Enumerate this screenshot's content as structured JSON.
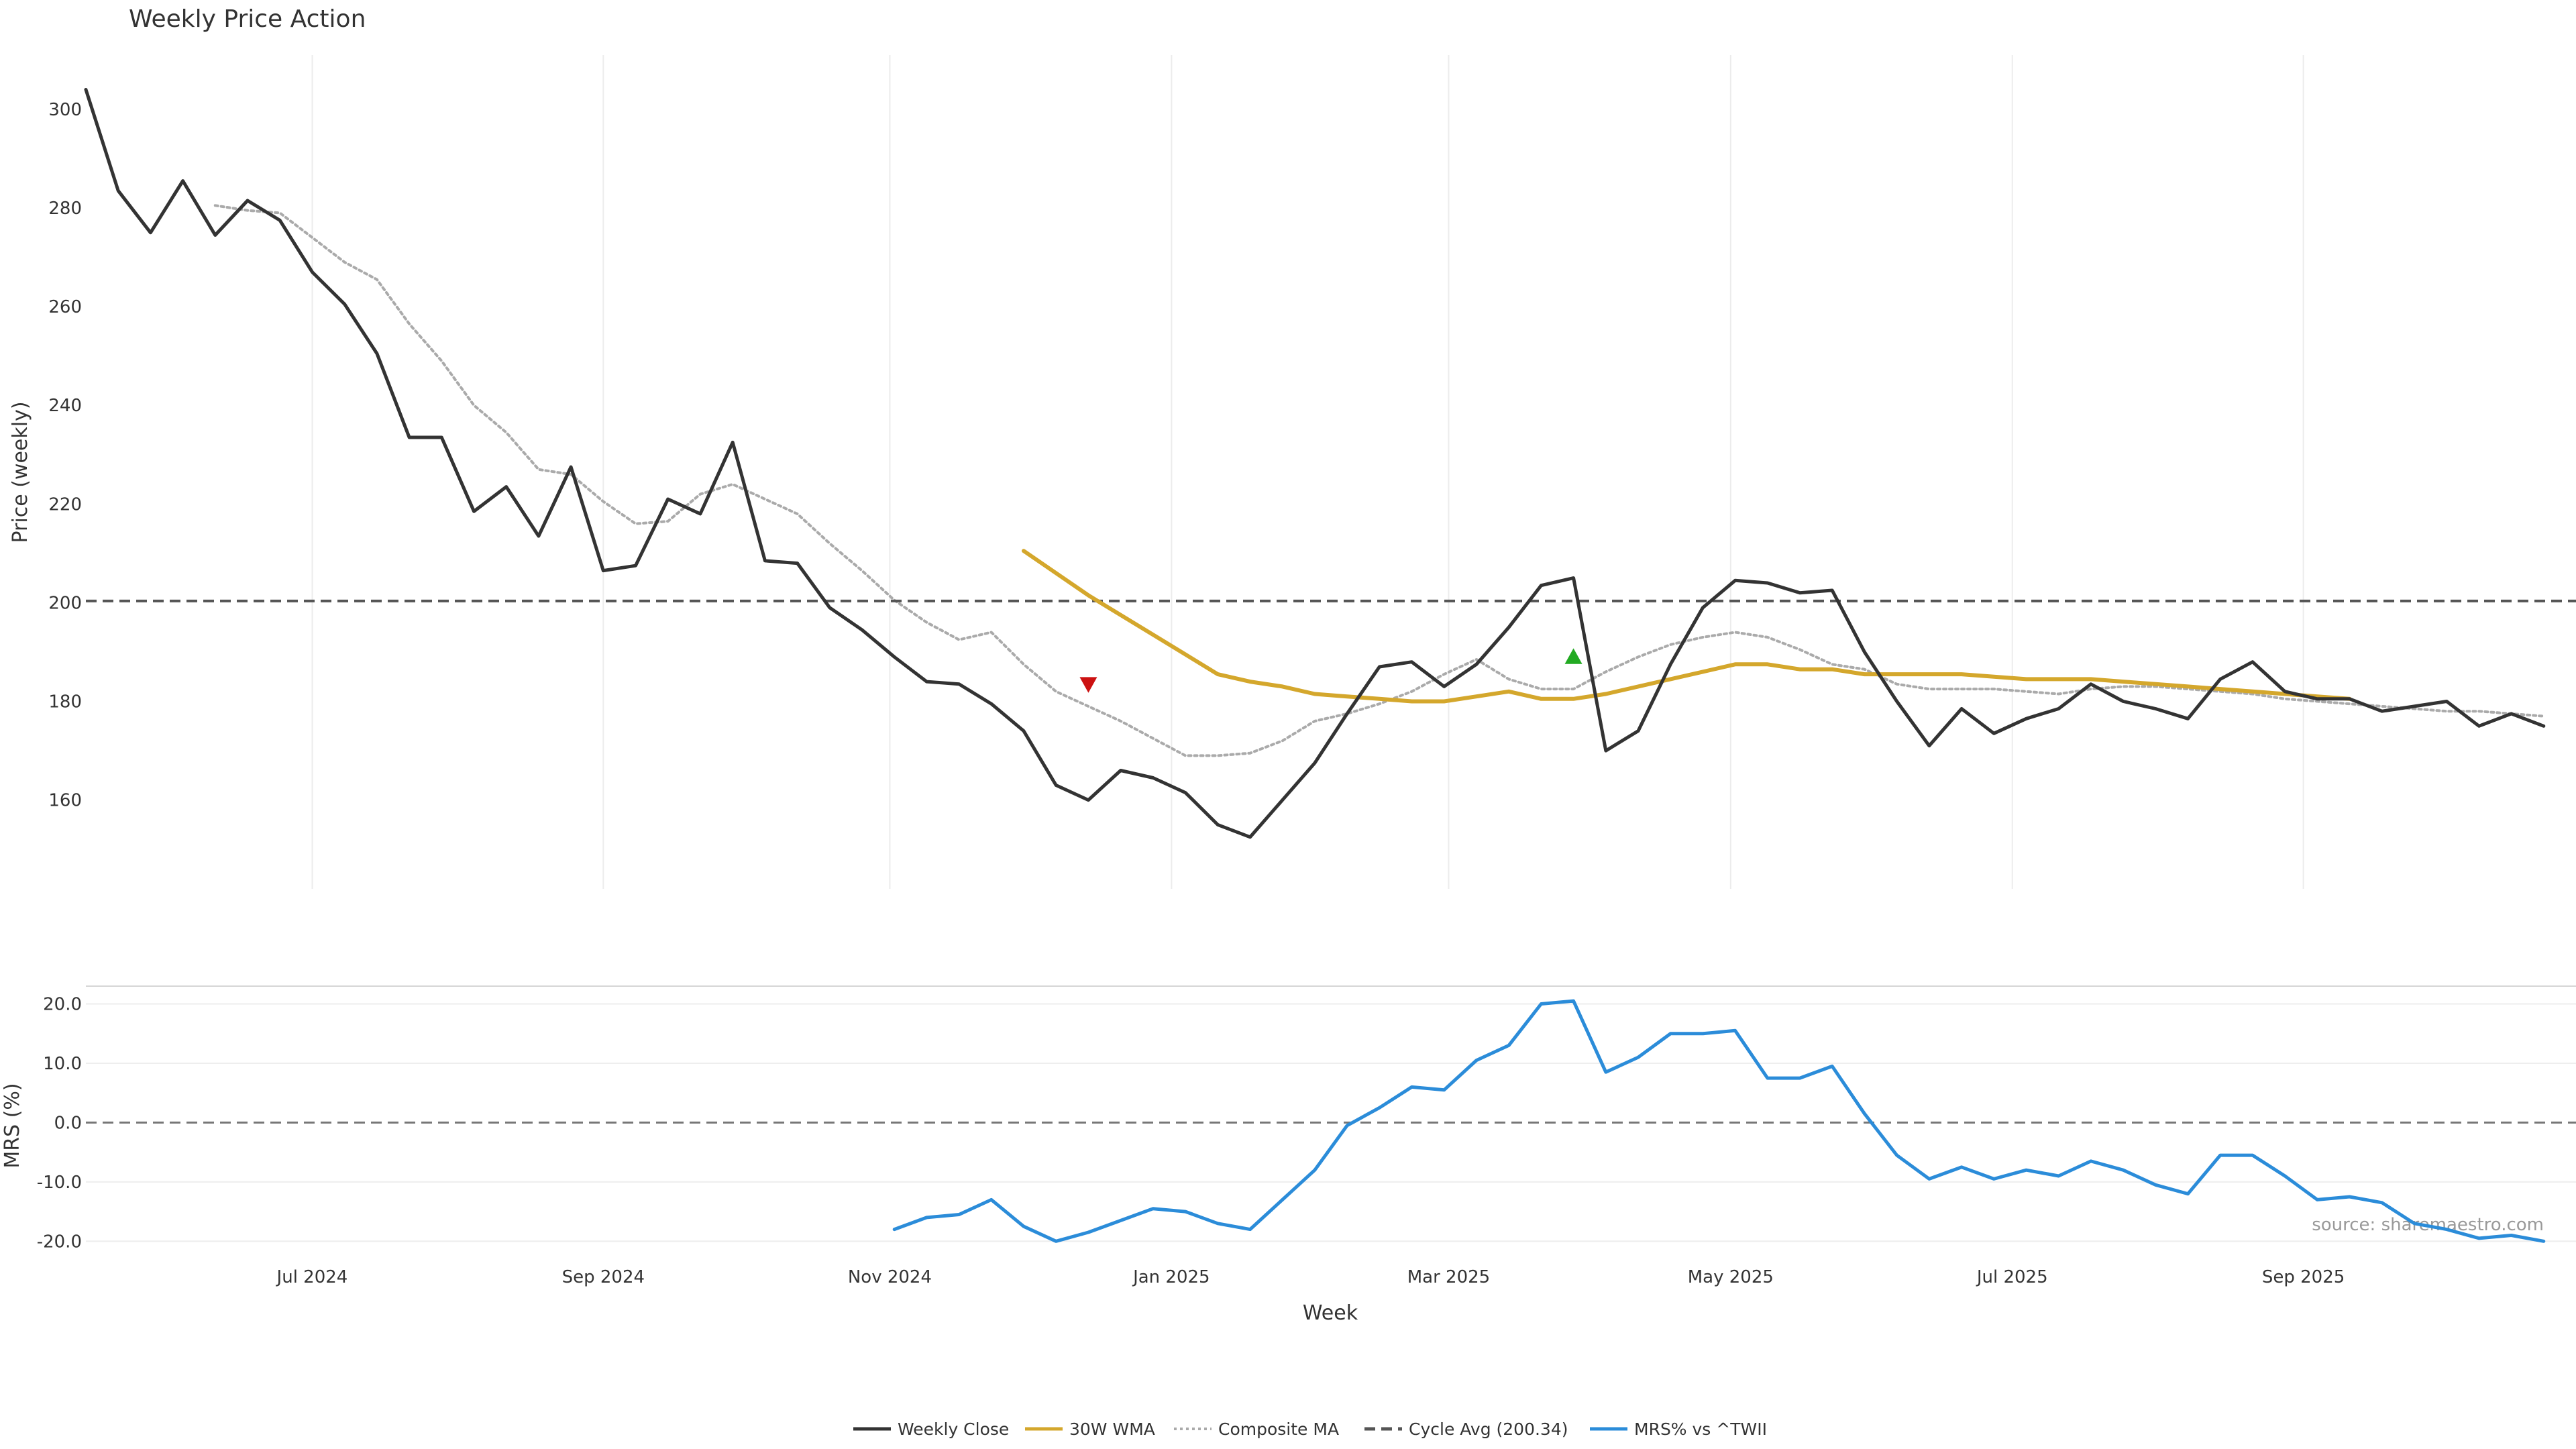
{
  "chart_data": [
    {
      "type": "line",
      "title": "Weekly Price Action",
      "ylabel": "Price (weekly)",
      "ylim": [
        142,
        311
      ],
      "yticks": [
        160,
        180,
        200,
        220,
        240,
        260,
        280,
        300
      ],
      "x_axis": {
        "domain": [
          0,
          77
        ],
        "week_labels": [
          {
            "week": 7,
            "label": "Jul 2024"
          },
          {
            "week": 16,
            "label": "Sep 2024"
          },
          {
            "week": 24.86,
            "label": "Nov 2024"
          },
          {
            "week": 33.57,
            "label": "Jan 2025"
          },
          {
            "week": 42.14,
            "label": "Mar 2025"
          },
          {
            "week": 50.86,
            "label": "May 2025"
          },
          {
            "week": 59.57,
            "label": "Jul 2025"
          },
          {
            "week": 68.57,
            "label": "Sep 2025"
          }
        ]
      },
      "series": [
        {
          "name": "Weekly Close",
          "color": "#333333",
          "style": "solid",
          "start_week": 0,
          "values": [
            304,
            283.5,
            275,
            285.5,
            274.5,
            281.5,
            277.5,
            267,
            260.5,
            250.5,
            233.5,
            233.5,
            218.5,
            223.5,
            213.5,
            227.5,
            206.5,
            207.5,
            221,
            218,
            232.5,
            208.5,
            208,
            199,
            194.5,
            189,
            184,
            183.5,
            179.5,
            174,
            163,
            160,
            166,
            164.5,
            161.5,
            155,
            152.5,
            160,
            167.5,
            177.5,
            187,
            188,
            183,
            187.5,
            195,
            203.5,
            205,
            170,
            174,
            187.5,
            199,
            204.5,
            204,
            202,
            202.5,
            190,
            180,
            171,
            178.5,
            173.5,
            176.5,
            178.5,
            183.5,
            180,
            178.5,
            176.5,
            184.5,
            188,
            182,
            180.5,
            180.5,
            178,
            179,
            180,
            175,
            177.5,
            175
          ]
        },
        {
          "name": "30W WMA",
          "color": "#d4a72c",
          "style": "solid",
          "start_week": 29,
          "values": [
            210.5,
            206,
            201.5,
            197.5,
            193.5,
            189.5,
            185.5,
            184,
            183,
            181.5,
            181,
            180.5,
            180,
            180,
            181,
            182,
            180.5,
            180.5,
            181.5,
            183,
            184.5,
            186,
            187.5,
            187.5,
            186.5,
            186.5,
            185.5,
            185.5,
            185.5,
            185.5,
            185,
            184.5,
            184.5,
            184.5,
            184,
            183.5,
            183,
            182.5,
            182,
            181.5,
            181,
            180.5
          ]
        },
        {
          "name": "Composite MA",
          "color": "#aaaaaa",
          "style": "dotted",
          "start_week": 4,
          "values": [
            280.5,
            279.5,
            279,
            274,
            269,
            265.5,
            256.5,
            249,
            240,
            234.5,
            227,
            226,
            220.5,
            216,
            216.5,
            222,
            224,
            221,
            218,
            212,
            206.5,
            200.5,
            196,
            192.5,
            194,
            187.5,
            182,
            179,
            176,
            172.5,
            169,
            169,
            169.5,
            172,
            176,
            177.5,
            179.5,
            182,
            185.5,
            188.5,
            184.5,
            182.5,
            182.5,
            186,
            189,
            191.5,
            193,
            194,
            193,
            190.5,
            187.5,
            186.5,
            183.5,
            182.5,
            182.5,
            182.5,
            182,
            181.5,
            182.5,
            183,
            183,
            182.5,
            182,
            181.5,
            180.5,
            180,
            179.5,
            179,
            178.5,
            178,
            178,
            177.5,
            177
          ]
        },
        {
          "name": "Cycle Avg (200.34)",
          "color": "#555555",
          "style": "dashed",
          "constant": 200.34
        }
      ],
      "markers": [
        {
          "type": "sell",
          "shape": "triangle-down",
          "color": "#cc1111",
          "week": 31,
          "value": 183.5
        },
        {
          "type": "buy",
          "shape": "triangle-up",
          "color": "#22aa22",
          "week": 46,
          "value": 189
        }
      ]
    },
    {
      "type": "line",
      "title": "",
      "xlabel": "Week",
      "ylabel": "MRS (%)",
      "ylim": [
        -22,
        23
      ],
      "yticks": [
        -20,
        -10,
        0,
        10,
        20
      ],
      "ytick_labels": [
        "-20.0",
        "-10.0",
        "0.0",
        "10.0",
        "20.0"
      ],
      "reference_line": 0,
      "series": [
        {
          "name": "MRS% vs ^TWII",
          "color": "#2b8cd9",
          "style": "solid",
          "start_week": 25,
          "values": [
            -18,
            -16,
            -15.5,
            -13,
            -17.5,
            -20,
            -18.5,
            -16.5,
            -14.5,
            -15,
            -17,
            -18,
            -13,
            -8,
            -0.5,
            2.5,
            6,
            5.5,
            10.5,
            13,
            20,
            20.5,
            8.5,
            11,
            15,
            15,
            15.5,
            7.5,
            7.5,
            9.5,
            1.5,
            -5.5,
            -9.5,
            -7.5,
            -9.5,
            -8,
            -9,
            -6.5,
            -8,
            -10.5,
            -12,
            -5.5,
            -5.5,
            -9,
            -13,
            -12.5,
            -13.5,
            -17,
            -18,
            -19.5,
            -19,
            -20
          ]
        }
      ]
    }
  ],
  "legend": {
    "position": "bottom-center",
    "entries": [
      {
        "label": "Weekly Close",
        "color": "#333333",
        "style": "solid"
      },
      {
        "label": "30W WMA",
        "color": "#d4a72c",
        "style": "solid"
      },
      {
        "label": "Composite MA",
        "color": "#aaaaaa",
        "style": "dotted"
      },
      {
        "label": "Cycle Avg (200.34)",
        "color": "#555555",
        "style": "dashed"
      },
      {
        "label": "MRS% vs ^TWII",
        "color": "#2b8cd9",
        "style": "solid"
      }
    ]
  },
  "source": "source: sharemaestro.com"
}
